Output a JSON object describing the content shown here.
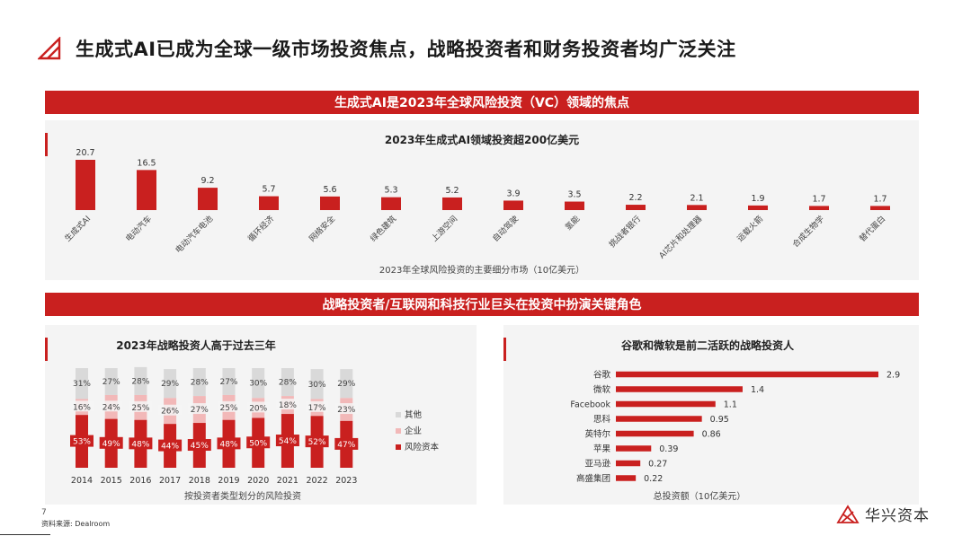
{
  "header": {
    "title": "生成式AI已成为全球一级市场投资焦点，战略投资者和财务投资者均广泛关注",
    "icon": "triangle-logo-icon"
  },
  "section1": {
    "banner": "生成式AI是2023年全球风险投资（VC）领域的焦点"
  },
  "section2": {
    "banner": "战略投资者/互联网和科技行业巨头在投资中扮演关键角色"
  },
  "colors": {
    "accent": "#c9201f",
    "pink": "#f2b8b8",
    "gray": "#d9d9d9"
  },
  "chart_data": [
    {
      "type": "bar",
      "title": "2023年生成式AI领域投资超200亿美元",
      "xlabel": "2023年全球风险投资的主要细分市场（10亿美元）",
      "categories": [
        "生成式AI",
        "电动汽车",
        "电动汽车电池",
        "循环经济",
        "网络安全",
        "绿色建筑",
        "上游空间",
        "自动驾驶",
        "氢能",
        "挑战者银行",
        "AI芯片和处理器",
        "运载火箭",
        "合成生物学",
        "替代蛋白"
      ],
      "values": [
        20.7,
        16.5,
        9.2,
        5.7,
        5.6,
        5.3,
        5.2,
        3.9,
        3.5,
        2.2,
        2.1,
        1.9,
        1.7,
        1.7
      ],
      "value_labels": [
        "20.7",
        "16.5",
        "9.2",
        "5.7",
        "5.6",
        "5.3",
        "5.2",
        "3.9",
        "3.5",
        "2.2",
        "2.1",
        "1.9",
        "1.7",
        "1.7"
      ]
    },
    {
      "type": "bar",
      "stacked": true,
      "title": "2023年战略投资人高于过去三年",
      "xlabel": "按投资者类型划分的风险投资",
      "categories": [
        "2014",
        "2015",
        "2016",
        "2017",
        "2018",
        "2019",
        "2020",
        "2021",
        "2022",
        "2023"
      ],
      "series": [
        {
          "name": "风险资本",
          "values": [
            53,
            49,
            48,
            44,
            45,
            48,
            50,
            54,
            52,
            47
          ],
          "labels": [
            "53%",
            "49%",
            "48%",
            "44%",
            "45%",
            "48%",
            "50%",
            "54%",
            "52%",
            "47%"
          ]
        },
        {
          "name": "企业",
          "values": [
            16,
            24,
            25,
            26,
            27,
            25,
            20,
            18,
            17,
            23
          ],
          "labels": [
            "16%",
            "24%",
            "25%",
            "26%",
            "27%",
            "25%",
            "20%",
            "18%",
            "17%",
            "23%"
          ]
        },
        {
          "name": "其他",
          "values": [
            31,
            27,
            28,
            29,
            28,
            27,
            30,
            28,
            30,
            29
          ],
          "labels": [
            "31%",
            "27%",
            "28%",
            "29%",
            "28%",
            "27%",
            "30%",
            "28%",
            "30%",
            "29%"
          ]
        }
      ],
      "legend": "right",
      "legend_order": [
        "其他",
        "企业",
        "风险资本"
      ]
    },
    {
      "type": "bar",
      "orientation": "horizontal",
      "title": "谷歌和微软是前二活跃的战略投资人",
      "xlabel": "总投资额（10亿美元）",
      "categories": [
        "谷歌",
        "微软",
        "Facebook",
        "思科",
        "英特尔",
        "苹果",
        "亚马逊",
        "高盛集团"
      ],
      "values": [
        2.9,
        1.4,
        1.1,
        0.95,
        0.86,
        0.39,
        0.27,
        0.22
      ],
      "value_labels": [
        "2.9",
        "1.4",
        "1.1",
        "0.95",
        "0.86",
        "0.39",
        "0.27",
        "0.22"
      ]
    }
  ],
  "footer": {
    "page_number": "7",
    "source": "资料来源: Dealroom",
    "brand": "华兴资本"
  }
}
